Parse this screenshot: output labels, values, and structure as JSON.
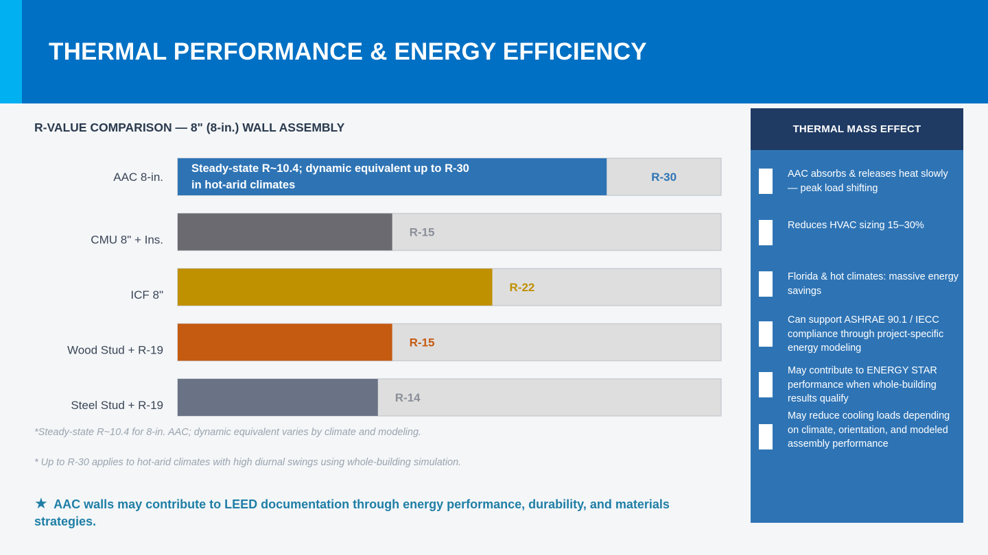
{
  "header": {
    "title": "THERMAL PERFORMANCE & ENERGY EFFICIENCY"
  },
  "chart_data": {
    "type": "bar",
    "orientation": "horizontal",
    "title": "R-VALUE COMPARISON — 8\" (8-in.) WALL ASSEMBLY",
    "categories": [
      "AAC 8-in.",
      "CMU 8\" + Ins.",
      "ICF 8\"",
      "Wood Stud + R-19",
      "Steel Stud + R-19"
    ],
    "values": [
      30,
      15,
      22,
      15,
      14
    ],
    "value_labels": [
      "R-30",
      "R-15",
      "R-22",
      "R-15",
      "R-14"
    ],
    "colors": [
      "#2e74b5",
      "#6a6a70",
      "#bf9000",
      "#c55a11",
      "#6a7285"
    ],
    "value_label_colors": [
      "#2e74b5",
      "#8a8f99",
      "#bf9000",
      "#c55a11",
      "#8a8f99"
    ],
    "track_color": "#dedede",
    "xlim": [
      0,
      38
    ],
    "bar_note_lines": [
      "Steady-state R~10.4; dynamic equivalent up to R-30",
      "in hot-arid climates"
    ],
    "grid": false
  },
  "footnotes": [
    "*Steady-state R~10.4 for 8-in. AAC; dynamic equivalent varies by climate and modeling.",
    "* Up to R-30 applies to hot-arid climates with high diurnal swings using whole-building simulation."
  ],
  "leed": {
    "star": "★",
    "text": "AAC walls may contribute to LEED documentation through energy performance, durability, and materials strategies."
  },
  "side_panel": {
    "title": "THERMAL MASS EFFECT",
    "items": [
      "AAC absorbs & releases heat slowly — peak load shifting",
      "Reduces HVAC sizing 15–30%",
      "Florida & hot climates: massive energy savings",
      "Can support ASHRAE 90.1 / IECC compliance through project-specific energy modeling",
      "May contribute to ENERGY STAR performance when whole-building results qualify",
      "May reduce cooling loads depending on climate, orientation, and modeled assembly performance"
    ]
  }
}
